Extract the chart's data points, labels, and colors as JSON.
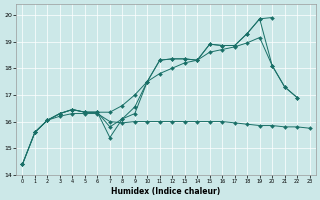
{
  "xlabel": "Humidex (Indice chaleur)",
  "ylabel": "",
  "bg_color": "#cce8e8",
  "line_color": "#1a7068",
  "xlim": [
    -0.5,
    23.5
  ],
  "ylim": [
    14,
    20.4
  ],
  "yticks": [
    14,
    15,
    16,
    17,
    18,
    19,
    20
  ],
  "xticks": [
    0,
    1,
    2,
    3,
    4,
    5,
    6,
    7,
    8,
    9,
    10,
    11,
    12,
    13,
    14,
    15,
    16,
    17,
    18,
    19,
    20,
    21,
    22,
    23
  ],
  "series": [
    {
      "x": [
        1,
        2,
        3,
        4,
        5,
        6,
        7,
        8,
        9,
        10,
        11,
        12,
        13,
        14,
        15,
        16,
        17,
        18,
        19,
        20,
        21,
        22,
        23
      ],
      "y": [
        15.6,
        16.05,
        16.2,
        16.3,
        16.3,
        16.3,
        16.0,
        15.95,
        16.0,
        16.0,
        16.0,
        16.0,
        16.0,
        16.0,
        16.0,
        16.0,
        15.95,
        15.9,
        15.85,
        15.85,
        15.8,
        15.8,
        15.75
      ]
    },
    {
      "x": [
        0,
        1,
        2,
        3,
        4,
        5,
        6,
        7,
        8,
        9,
        10,
        11,
        12,
        13,
        14,
        15,
        16,
        17,
        18,
        19,
        20
      ],
      "y": [
        14.4,
        15.6,
        16.05,
        16.3,
        16.45,
        16.35,
        16.35,
        15.4,
        16.1,
        16.55,
        17.5,
        18.3,
        18.35,
        18.35,
        18.3,
        18.9,
        18.85,
        18.85,
        19.3,
        19.85,
        19.9
      ]
    },
    {
      "x": [
        0,
        1,
        2,
        3,
        4,
        5,
        6,
        7,
        8,
        9,
        10,
        11,
        12,
        13,
        14,
        15,
        16,
        17,
        18,
        19,
        20,
        21,
        22
      ],
      "y": [
        14.4,
        15.6,
        16.05,
        16.3,
        16.45,
        16.35,
        16.35,
        15.8,
        16.1,
        16.3,
        17.5,
        18.3,
        18.35,
        18.35,
        18.3,
        18.9,
        18.85,
        18.85,
        19.3,
        19.85,
        18.1,
        17.3,
        16.9
      ]
    },
    {
      "x": [
        0,
        1,
        2,
        3,
        4,
        5,
        6,
        7,
        8,
        9,
        10,
        11,
        12,
        13,
        14,
        15,
        16,
        17,
        18,
        19,
        20,
        21,
        22
      ],
      "y": [
        14.4,
        15.6,
        16.05,
        16.3,
        16.45,
        16.35,
        16.35,
        16.35,
        16.6,
        17.0,
        17.5,
        17.8,
        18.0,
        18.2,
        18.3,
        18.6,
        18.7,
        18.8,
        18.95,
        19.15,
        18.1,
        17.3,
        16.9
      ]
    }
  ]
}
